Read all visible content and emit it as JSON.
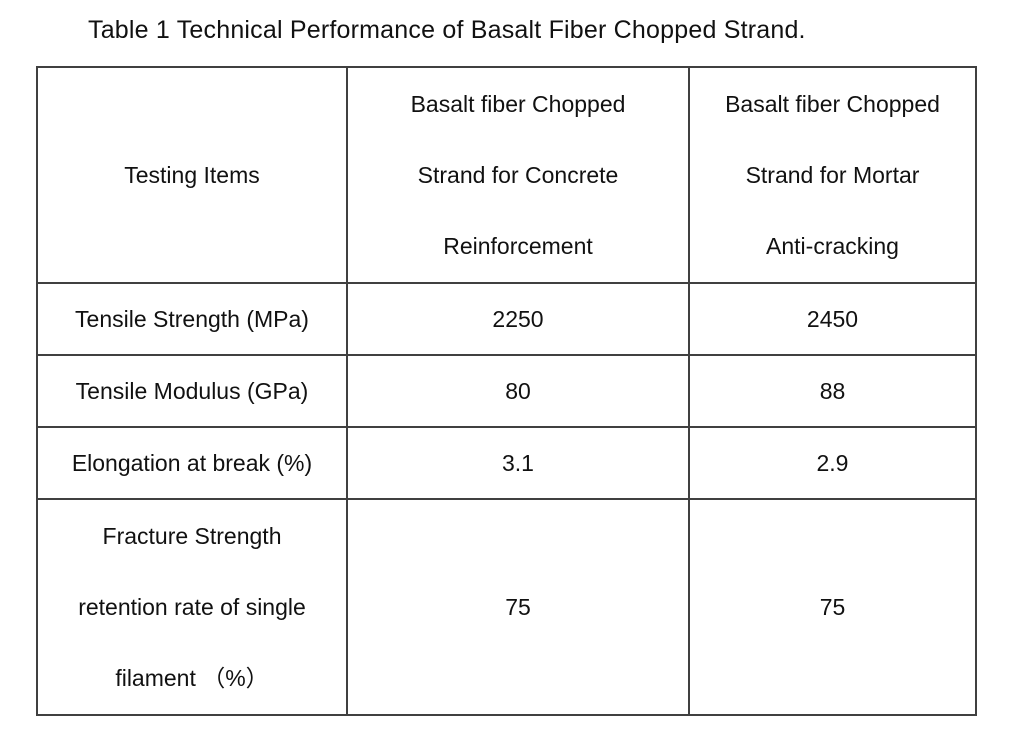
{
  "caption": "Table 1 Technical Performance of Basalt Fiber Chopped Strand.",
  "table": {
    "header": {
      "testing_items": "Testing Items",
      "concrete_lines": [
        "Basalt fiber Chopped",
        "Strand for Concrete",
        "Reinforcement"
      ],
      "mortar_lines": [
        "Basalt fiber Chopped",
        "Strand for Mortar",
        "Anti-cracking"
      ]
    },
    "rows": [
      {
        "item": "Tensile Strength (MPa)",
        "concrete": "2250",
        "mortar": "2450"
      },
      {
        "item": "Tensile Modulus (GPa)",
        "concrete": "80",
        "mortar": "88"
      },
      {
        "item": "Elongation at break (%)",
        "concrete": "3.1",
        "mortar": "2.9"
      },
      {
        "item_lines": [
          "Fracture Strength",
          "retention rate of single",
          "filament （%）"
        ],
        "concrete": "75",
        "mortar": "75"
      }
    ]
  },
  "colors": {
    "border": "#404040",
    "text": "#111111",
    "background": "#ffffff"
  }
}
